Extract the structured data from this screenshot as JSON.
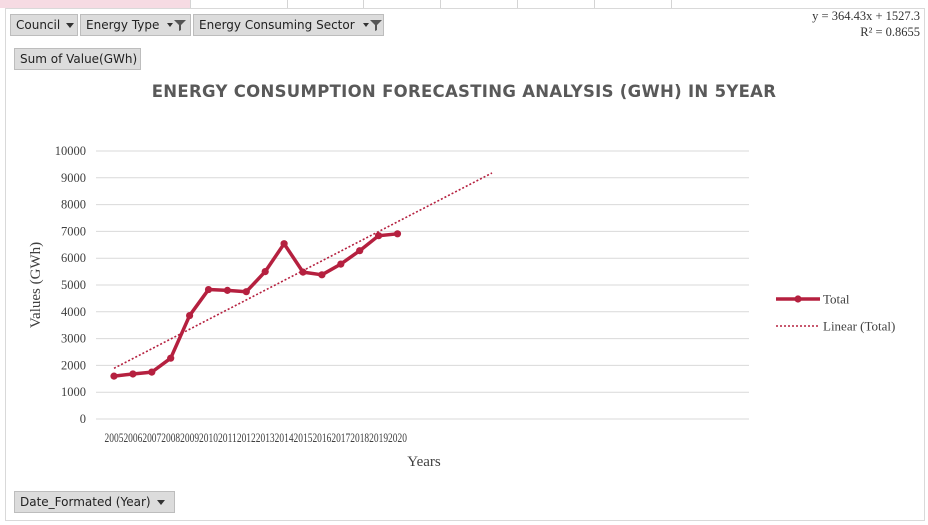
{
  "filters": {
    "council": "Council",
    "energy_type": "Energy Type",
    "energy_consuming_sector": "Energy Consuming Sector",
    "sum_of_value": "Sum of Value(GWh)",
    "date_formated": "Date_Formated  (Year)"
  },
  "trendline": {
    "equation": "y = 364.43x + 1527.3",
    "r_squared": "R² = 0.8655"
  },
  "colors": {
    "series": "#b5203f",
    "trend": "#b5203f",
    "grid": "#d9d9d9",
    "axis_text": "#404040"
  },
  "chart_data": {
    "type": "line",
    "title": "ENERGY CONSUMPTION FORECASTING ANALYSIS (GWH) IN 5YEAR",
    "xlabel": "Years",
    "ylabel": "Values (GWh)",
    "ylim": [
      0,
      10000
    ],
    "yticks": [
      0,
      1000,
      2000,
      3000,
      4000,
      5000,
      6000,
      7000,
      8000,
      9000,
      10000
    ],
    "categories": [
      "2005",
      "2006",
      "2007",
      "2008",
      "2009",
      "2010",
      "2011",
      "2012",
      "2013",
      "2014",
      "2015",
      "2016",
      "2017",
      "2018",
      "2019",
      "2020"
    ],
    "series": [
      {
        "name": "Total",
        "values": [
          1600,
          1680,
          1750,
          2270,
          3860,
          4830,
          4800,
          4750,
          5500,
          6540,
          5480,
          5380,
          5780,
          6280,
          6840,
          6910
        ]
      }
    ],
    "trendline": {
      "name": "Linear (Total)",
      "type": "linear",
      "slope": 364.43,
      "intercept": 1527.3,
      "forecast_periods": 5
    },
    "grid": true,
    "legend": "right"
  }
}
